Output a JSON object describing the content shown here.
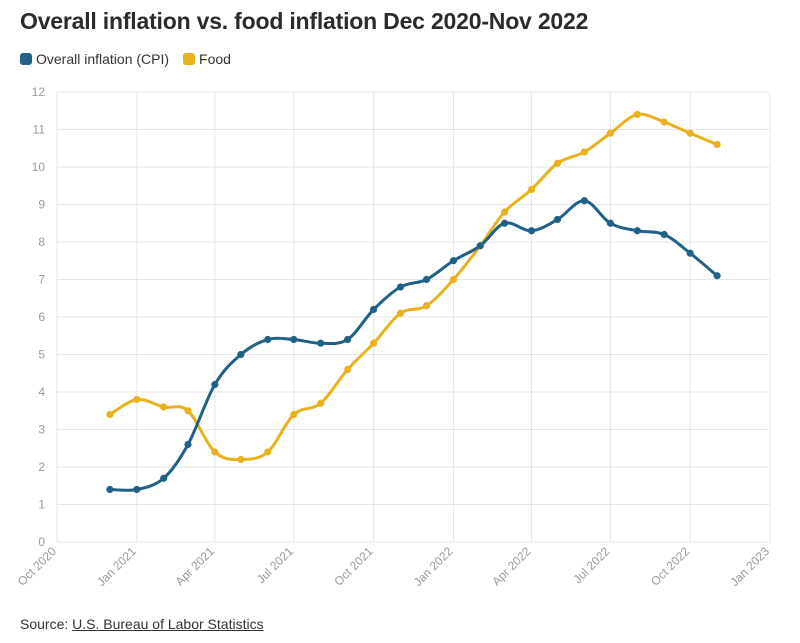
{
  "title": "Overall inflation vs. food inflation Dec 2020-Nov 2022",
  "legend": [
    {
      "label": "Overall inflation (CPI)",
      "color": "#1f6187"
    },
    {
      "label": "Food",
      "color": "#e9b11c"
    }
  ],
  "source": {
    "prefix": "Source: ",
    "link_text": "U.S. Bureau of Labor Statistics"
  },
  "chart_data": {
    "type": "line",
    "title": "Overall inflation vs. food inflation Dec 2020-Nov 2022",
    "xlabel": "",
    "ylabel": "",
    "ylim": [
      0,
      12
    ],
    "yticks": [
      0,
      1,
      2,
      3,
      4,
      5,
      6,
      7,
      8,
      9,
      10,
      11,
      12
    ],
    "xlim": [
      "2020-10-01",
      "2023-01-01"
    ],
    "xticks": [
      {
        "date": "2020-10-01",
        "label": "Oct 2020"
      },
      {
        "date": "2021-01-01",
        "label": "Jan 2021"
      },
      {
        "date": "2021-04-01",
        "label": "Apr 2021"
      },
      {
        "date": "2021-07-01",
        "label": "Jul 2021"
      },
      {
        "date": "2021-10-01",
        "label": "Oct 2021"
      },
      {
        "date": "2022-01-01",
        "label": "Jan 2022"
      },
      {
        "date": "2022-04-01",
        "label": "Apr 2022"
      },
      {
        "date": "2022-07-01",
        "label": "Jul 2022"
      },
      {
        "date": "2022-10-01",
        "label": "Oct 2022"
      },
      {
        "date": "2023-01-01",
        "label": "Jan 2023"
      }
    ],
    "grid": true,
    "legend_position": "top-left",
    "x": [
      "2020-12",
      "2021-01",
      "2021-02",
      "2021-03",
      "2021-04",
      "2021-05",
      "2021-06",
      "2021-07",
      "2021-08",
      "2021-09",
      "2021-10",
      "2021-11",
      "2021-12",
      "2022-01",
      "2022-02",
      "2022-03",
      "2022-04",
      "2022-05",
      "2022-06",
      "2022-07",
      "2022-08",
      "2022-09",
      "2022-10",
      "2022-11"
    ],
    "series": [
      {
        "name": "Overall inflation (CPI)",
        "color": "#1f6187",
        "values": [
          1.4,
          1.4,
          1.7,
          2.6,
          4.2,
          5.0,
          5.4,
          5.4,
          5.3,
          5.4,
          6.2,
          6.8,
          7.0,
          7.5,
          7.9,
          8.5,
          8.3,
          8.6,
          9.1,
          8.5,
          8.3,
          8.2,
          7.7,
          7.1
        ]
      },
      {
        "name": "Food",
        "color": "#e9b11c",
        "values": [
          3.4,
          3.8,
          3.6,
          3.5,
          2.4,
          2.2,
          2.4,
          3.4,
          3.7,
          4.6,
          5.3,
          6.1,
          6.3,
          7.0,
          7.9,
          8.8,
          9.4,
          10.1,
          10.4,
          10.9,
          11.4,
          11.2,
          10.9,
          10.6
        ]
      }
    ]
  }
}
